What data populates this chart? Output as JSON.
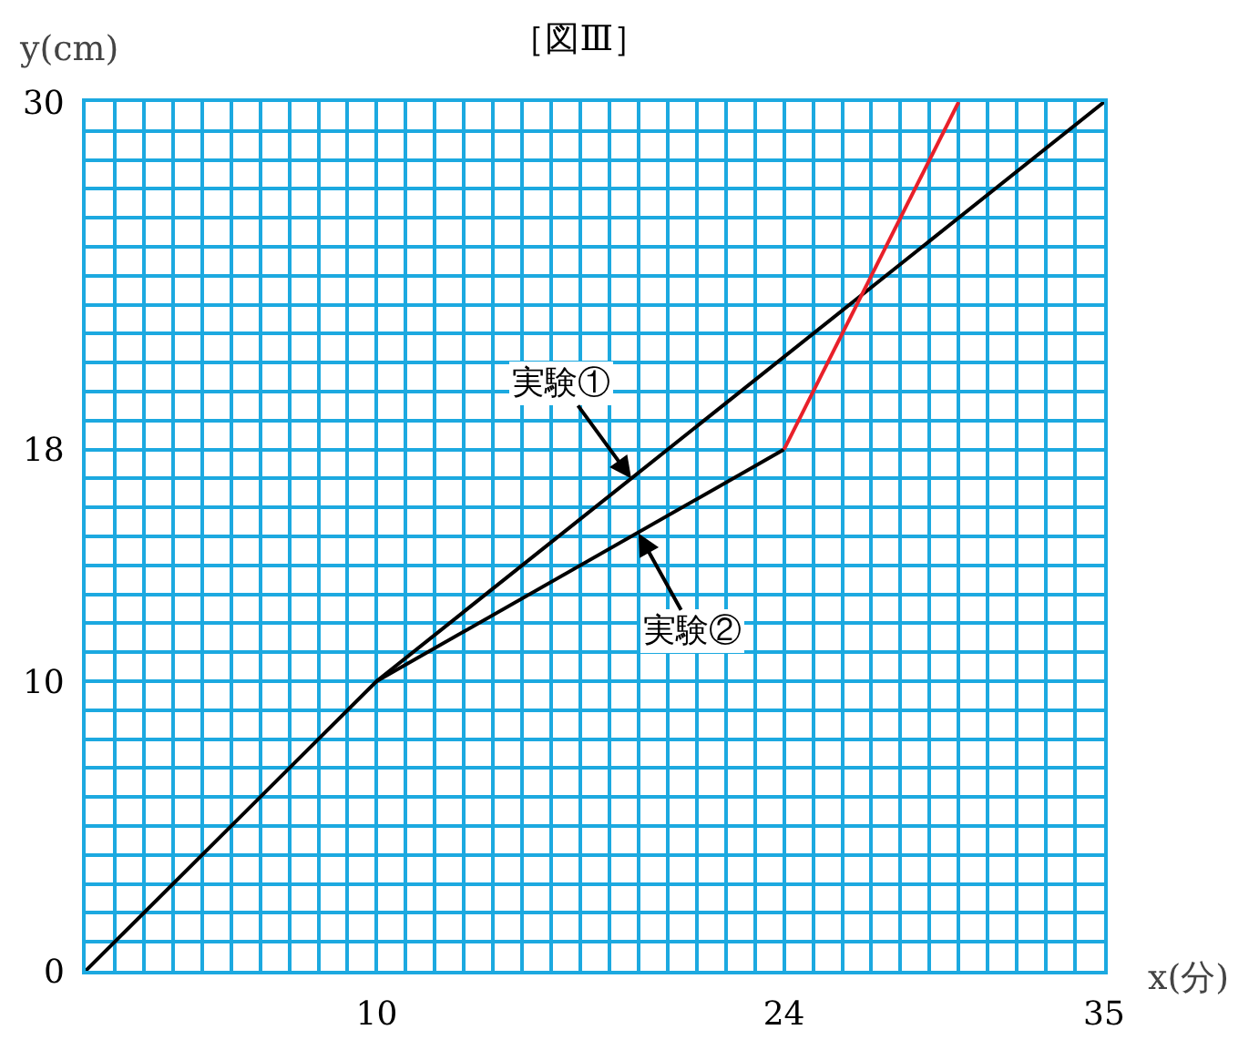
{
  "chart_data": {
    "type": "line",
    "title": "［図Ⅲ］",
    "xlabel": "x(分)",
    "ylabel": "y(cm)",
    "series": [
      {
        "color": "#000000",
        "x": [
          0,
          10,
          35
        ],
        "values": [
          0,
          10,
          30
        ]
      },
      {
        "color": "#000000",
        "x": [
          10,
          24
        ],
        "values": [
          10,
          18
        ]
      },
      {
        "color": "#e8202a",
        "x": [
          24,
          30
        ],
        "values": [
          18,
          30
        ]
      }
    ],
    "annotations": [
      {
        "text": "実験①",
        "x": 18.75,
        "y": 17
      },
      {
        "text": "実験②",
        "x": 19,
        "y": 15.1
      }
    ],
    "xlim": [
      0,
      35
    ],
    "ylim": [
      0,
      30
    ],
    "xticks": [
      {
        "value": 1,
        "label": null
      },
      {
        "value": 2,
        "label": null
      },
      {
        "value": 3,
        "label": null
      },
      {
        "value": 4,
        "label": null
      },
      {
        "value": 5,
        "label": null
      },
      {
        "value": 6,
        "label": null
      },
      {
        "value": 7,
        "label": null
      },
      {
        "value": 8,
        "label": null
      },
      {
        "value": 9,
        "label": null
      },
      10,
      {
        "value": 11,
        "label": null
      },
      {
        "value": 12,
        "label": null
      },
      {
        "value": 13,
        "label": null
      },
      {
        "value": 14,
        "label": null
      },
      {
        "value": 15,
        "label": null
      },
      {
        "value": 16,
        "label": null
      },
      {
        "value": 17,
        "label": null
      },
      {
        "value": 18,
        "label": null
      },
      {
        "value": 19,
        "label": null
      },
      {
        "value": 20,
        "label": null
      },
      {
        "value": 21,
        "label": null
      },
      {
        "value": 22,
        "label": null
      },
      {
        "value": 23,
        "label": null
      },
      24,
      {
        "value": 25,
        "label": null
      },
      {
        "value": 26,
        "label": null
      },
      {
        "value": 27,
        "label": null
      },
      {
        "value": 28,
        "label": null
      },
      {
        "value": 29,
        "label": null
      },
      {
        "value": 30,
        "label": null
      },
      {
        "value": 31,
        "label": null
      },
      {
        "value": 32,
        "label": null
      },
      {
        "value": 33,
        "label": null
      },
      {
        "value": 34,
        "label": null
      },
      35
    ],
    "yticks": [
      0,
      {
        "value": 1,
        "label": null
      },
      {
        "value": 2,
        "label": null
      },
      {
        "value": 3,
        "label": null
      },
      {
        "value": 4,
        "label": null
      },
      {
        "value": 5,
        "label": null
      },
      {
        "value": 6,
        "label": null
      },
      {
        "value": 7,
        "label": null
      },
      {
        "value": 8,
        "label": null
      },
      {
        "value": 9,
        "label": null
      },
      10,
      {
        "value": 11,
        "label": null
      },
      {
        "value": 12,
        "label": null
      },
      {
        "value": 13,
        "label": null
      },
      {
        "value": 14,
        "label": null
      },
      {
        "value": 15,
        "label": null
      },
      {
        "value": 16,
        "label": null
      },
      {
        "value": 17,
        "label": null
      },
      18,
      {
        "value": 19,
        "label": null
      },
      {
        "value": 20,
        "label": null
      },
      {
        "value": 21,
        "label": null
      },
      {
        "value": 22,
        "label": null
      },
      {
        "value": 23,
        "label": null
      },
      {
        "value": 24,
        "label": null
      },
      {
        "value": 25,
        "label": null
      },
      {
        "value": 26,
        "label": null
      },
      {
        "value": 27,
        "label": null
      },
      {
        "value": 28,
        "label": null
      },
      {
        "value": 29,
        "label": null
      },
      30
    ],
    "grid": true,
    "marker": "none",
    "line_style": "solid",
    "legend": false
  }
}
